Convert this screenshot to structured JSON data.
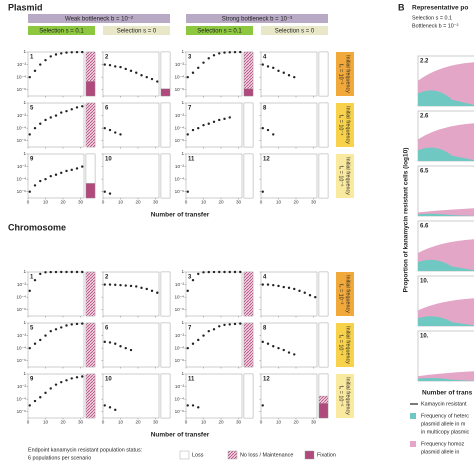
{
  "panel_a": {
    "type": "scatter",
    "log_y": true,
    "ylim": [
      1e-07,
      1
    ],
    "yticks": [
      1,
      {
        "value": 0.01,
        "label": "10⁻²"
      },
      {
        "value": 0.0001,
        "label": "10⁻⁴"
      },
      {
        "value": 1e-06,
        "label": "10⁻⁶"
      }
    ],
    "xlim": [
      0,
      32
    ],
    "xticks": [
      0,
      10,
      20,
      30
    ],
    "x": [
      1,
      4,
      7,
      10,
      13,
      16,
      19,
      22,
      25,
      28,
      31
    ],
    "x_label": "Number of transfer",
    "bottlenecks": [
      "Weak bottleneck b = 10⁻²",
      "Strong bottleneck b = 10⁻³"
    ],
    "selections": [
      "Selection s = 0.1",
      "Selection s = 0"
    ],
    "frequencies": [
      {
        "line1": "Initial frequency",
        "line2": "f₀ = 10⁻²",
        "color": "#f2a93b"
      },
      {
        "line1": "Initial frequency",
        "line2": "f₀ = 10⁻⁴",
        "color": "#f7d24a"
      },
      {
        "line1": "Initial frequency",
        "line2": "f₀ = 10⁻⁶",
        "color": "#faeaa0"
      }
    ],
    "point_color": "#222",
    "sections": [
      {
        "title": "Plasmid",
        "panels": [
          {
            "label": "1",
            "values": [
              0.0001,
              0.001,
              0.01,
              0.05,
              0.2,
              0.4,
              0.6,
              0.8,
              0.9,
              0.95,
              0.97
            ],
            "status": [
              0,
              4,
              2
            ]
          },
          {
            "label": "2",
            "values": [
              0.01,
              0.008,
              0.005,
              0.004,
              0.002,
              0.001,
              0.0005,
              0.0002,
              0.0001,
              5e-05,
              2e-05
            ],
            "status": [
              5,
              0,
              1
            ]
          },
          {
            "label": "3",
            "values": [
              0.0001,
              0.0005,
              0.003,
              0.02,
              0.1,
              0.3,
              0.6,
              0.8,
              0.9,
              0.95,
              0.97
            ],
            "status": [
              0,
              5,
              1
            ]
          },
          {
            "label": "4",
            "values": [
              0.01,
              0.005,
              0.003,
              0.001,
              0.0005,
              0.0002,
              0.0001,
              null,
              null,
              null,
              null
            ],
            "status": [
              6,
              0,
              0
            ]
          },
          {
            "label": "5",
            "values": [
              1e-05,
              0.0001,
              0.0005,
              0.002,
              0.005,
              0.01,
              0.03,
              0.05,
              0.1,
              0.2,
              0.3
            ],
            "status": [
              0,
              6,
              0
            ]
          },
          {
            "label": "6",
            "values": [
              0.0001,
              5e-05,
              2e-05,
              1e-05,
              null,
              null,
              null,
              null,
              null,
              null,
              null
            ],
            "status": [
              6,
              0,
              0
            ]
          },
          {
            "label": "7",
            "values": [
              1e-05,
              5e-05,
              0.0001,
              0.0003,
              0.0005,
              0.001,
              0.002,
              0.003,
              0.005,
              null,
              null
            ],
            "status": [
              6,
              0,
              0
            ]
          },
          {
            "label": "8",
            "values": [
              0.0001,
              5e-05,
              1e-05,
              null,
              null,
              null,
              null,
              null,
              null,
              null,
              null
            ],
            "status": [
              6,
              0,
              0
            ]
          },
          {
            "label": "9",
            "values": [
              1e-06,
              1e-05,
              5e-05,
              0.0001,
              0.0003,
              0.0005,
              0.001,
              0.002,
              0.003,
              0.005,
              0.01
            ],
            "status": [
              4,
              0,
              2
            ]
          },
          {
            "label": "10",
            "values": [
              1e-06,
              5e-07,
              null,
              null,
              null,
              null,
              null,
              null,
              null,
              null,
              null
            ],
            "status": [
              6,
              0,
              0
            ]
          },
          {
            "label": "11",
            "values": [
              1e-06,
              null,
              null,
              null,
              null,
              null,
              null,
              null,
              null,
              null,
              null
            ],
            "status": [
              6,
              0,
              0
            ]
          },
          {
            "label": "12",
            "values": [
              1e-06,
              null,
              null,
              null,
              null,
              null,
              null,
              null,
              null,
              null,
              null
            ],
            "status": [
              6,
              0,
              0
            ]
          }
        ]
      },
      {
        "title": "Chromosome",
        "panels": [
          {
            "label": "1",
            "values": [
              0.001,
              0.05,
              0.5,
              0.9,
              0.97,
              0.99,
              1,
              1,
              1,
              1,
              1
            ],
            "status": [
              0,
              6,
              0
            ]
          },
          {
            "label": "2",
            "values": [
              0.01,
              0.01,
              0.009,
              0.008,
              0.007,
              0.006,
              0.005,
              0.003,
              0.002,
              0.001,
              0.0005
            ],
            "status": [
              6,
              0,
              0
            ]
          },
          {
            "label": "3",
            "values": [
              0.001,
              0.05,
              0.5,
              0.9,
              0.97,
              0.99,
              1,
              1,
              1,
              1,
              1
            ],
            "status": [
              0,
              6,
              0
            ]
          },
          {
            "label": "4",
            "values": [
              0.01,
              0.01,
              0.008,
              0.006,
              0.004,
              0.003,
              0.002,
              0.001,
              0.0005,
              0.0002,
              0.0001
            ],
            "status": [
              6,
              0,
              0
            ]
          },
          {
            "label": "5",
            "values": [
              0.0001,
              0.0005,
              0.002,
              0.01,
              0.05,
              0.1,
              0.2,
              0.4,
              0.6,
              0.7,
              0.8
            ],
            "status": [
              0,
              6,
              0
            ]
          },
          {
            "label": "6",
            "values": [
              0.001,
              0.0008,
              0.0005,
              0.0002,
              0.0001,
              5e-05,
              null,
              null,
              null,
              null,
              null
            ],
            "status": [
              6,
              0,
              0
            ]
          },
          {
            "label": "7",
            "values": [
              0.0001,
              0.0005,
              0.002,
              0.01,
              0.05,
              0.1,
              0.3,
              0.5,
              0.6,
              0.7,
              0.8
            ],
            "status": [
              0,
              6,
              0
            ]
          },
          {
            "label": "8",
            "values": [
              0.001,
              0.0005,
              0.0002,
              0.0001,
              5e-05,
              2e-05,
              1e-05,
              null,
              null,
              null,
              null
            ],
            "status": [
              6,
              0,
              0
            ]
          },
          {
            "label": "9",
            "values": [
              1e-05,
              5e-05,
              0.0002,
              0.001,
              0.005,
              0.02,
              0.05,
              0.1,
              0.2,
              0.3,
              0.4
            ],
            "status": [
              0,
              6,
              0
            ]
          },
          {
            "label": "10",
            "values": [
              1e-05,
              5e-06,
              2e-06,
              null,
              null,
              null,
              null,
              null,
              null,
              null,
              null
            ],
            "status": [
              6,
              0,
              0
            ]
          },
          {
            "label": "11",
            "values": [
              1e-05,
              1e-05,
              5e-06,
              null,
              null,
              null,
              null,
              null,
              null,
              null,
              null
            ],
            "status": [
              6,
              0,
              0
            ]
          },
          {
            "label": "12",
            "values": [
              1e-05,
              null,
              null,
              null,
              null,
              null,
              null,
              null,
              null,
              null,
              null
            ],
            "status": [
              3,
              1,
              2
            ]
          }
        ]
      }
    ],
    "legend": {
      "title": "Endpoint kanamycin resistant population status:",
      "subtitle": "6 populations per scenario",
      "statuses": [
        "Loss",
        "No loss / Maintenance",
        "Fixation"
      ]
    }
  },
  "panel_b": {
    "letter": "B",
    "title": "Representative po",
    "selection": "Selection s = 0.1",
    "bottleneck": "Bottleneck b = 10⁻²",
    "y_label": "Proportion of kanamycin resistant cells (log10)",
    "x_label": "Number of trans",
    "subpanels": [
      "2.2",
      "2.6",
      "6.5",
      "6.6",
      "10.",
      "10."
    ],
    "legend": [
      "Kamaycin resistant",
      "Frequency of heterc",
      "plasmid allele in m",
      "in multicopy plasmic",
      "Frequency homoz",
      "plasmid allele in"
    ]
  }
}
